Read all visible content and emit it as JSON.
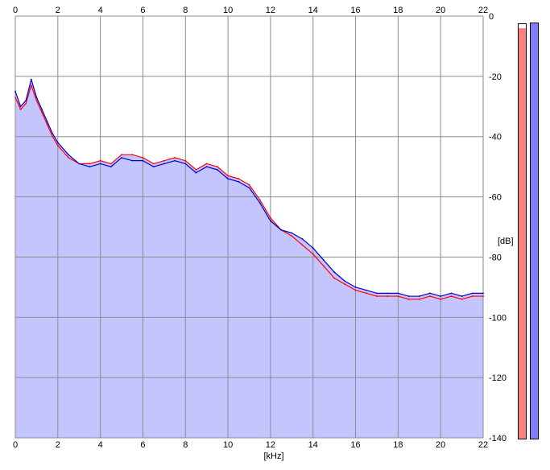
{
  "chart_data": {
    "type": "area",
    "title": "",
    "xlabel": "[kHz]",
    "ylabel": "[dB]",
    "xlim": [
      0,
      22
    ],
    "ylim": [
      -140,
      0
    ],
    "x_ticks": [
      "0",
      "2",
      "4",
      "6",
      "8",
      "10",
      "12",
      "14",
      "16",
      "18",
      "20",
      "22"
    ],
    "y_ticks": [
      "0",
      "-20",
      "-40",
      "-60",
      "-80",
      "-100",
      "-120",
      "-140"
    ],
    "grid": true,
    "series": [
      {
        "color": "#ff0000",
        "x": [
          0.0,
          0.25,
          0.5,
          0.75,
          1.0,
          1.25,
          1.5,
          1.75,
          2.0,
          2.5,
          3.0,
          3.5,
          4.0,
          4.5,
          5.0,
          5.5,
          6.0,
          6.5,
          7.0,
          7.5,
          8.0,
          8.5,
          9.0,
          9.5,
          10.0,
          10.5,
          11.0,
          11.5,
          12.0,
          12.5,
          13.0,
          13.5,
          14.0,
          14.5,
          15.0,
          15.5,
          16.0,
          16.5,
          17.0,
          17.5,
          18.0,
          18.5,
          19.0,
          19.5,
          20.0,
          20.5,
          21.0,
          21.5,
          22.0
        ],
        "values": [
          -27,
          -31,
          -29,
          -23,
          -28,
          -32,
          -36,
          -40,
          -43,
          -47,
          -49,
          -49,
          -48,
          -49,
          -46,
          -46,
          -47,
          -49,
          -48,
          -47,
          -48,
          -51,
          -49,
          -50,
          -53,
          -54,
          -56,
          -61,
          -67,
          -71,
          -73,
          -76,
          -79,
          -83,
          -87,
          -89,
          -91,
          -92,
          -93,
          -93,
          -93,
          -94,
          -94,
          -93,
          -94,
          -93,
          -94,
          -93,
          -93
        ]
      },
      {
        "color": "#0000cc",
        "x": [
          0.0,
          0.25,
          0.5,
          0.75,
          1.0,
          1.25,
          1.5,
          1.75,
          2.0,
          2.5,
          3.0,
          3.5,
          4.0,
          4.5,
          5.0,
          5.5,
          6.0,
          6.5,
          7.0,
          7.5,
          8.0,
          8.5,
          9.0,
          9.5,
          10.0,
          10.5,
          11.0,
          11.5,
          12.0,
          12.5,
          13.0,
          13.5,
          14.0,
          14.5,
          15.0,
          15.5,
          16.0,
          16.5,
          17.0,
          17.5,
          18.0,
          18.5,
          19.0,
          19.5,
          20.0,
          20.5,
          21.0,
          21.5,
          22.0
        ],
        "values": [
          -25,
          -30,
          -28,
          -21,
          -27,
          -31,
          -35,
          -39,
          -42,
          -46,
          -49,
          -50,
          -49,
          -50,
          -47,
          -48,
          -48,
          -50,
          -49,
          -48,
          -49,
          -52,
          -50,
          -51,
          -54,
          -55,
          -57,
          -62,
          -68,
          -71,
          -72,
          -74,
          -77,
          -81,
          -85,
          -88,
          -90,
          -91,
          -92,
          -92,
          -92,
          -93,
          -93,
          -92,
          -93,
          -92,
          -93,
          -92,
          -92
        ]
      }
    ],
    "fill_color": "#c4c4ff"
  },
  "level_meters": [
    {
      "color": "#ff8080",
      "level": 0.99
    },
    {
      "color": "#8080ff",
      "level": 1.0
    }
  ]
}
